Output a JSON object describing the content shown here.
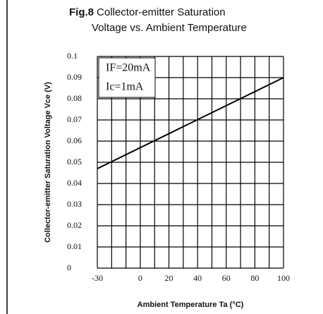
{
  "chart_data": {
    "type": "line",
    "figure": "Fig.8",
    "title": [
      "Collector-emitter Saturation",
      "Voltage vs. Ambient Temperature"
    ],
    "xlabel": "Ambient Temperature Ta (°C)",
    "ylabel": "Collector-emitter Saturation Voltage Vce (V)",
    "annotations": [
      "IF=20mA",
      "Ic=1mA"
    ],
    "x": [
      -30,
      100
    ],
    "series": [
      {
        "color": "#000000",
        "values": [
          0.047,
          0.09
        ]
      }
    ],
    "xlim": [
      -30,
      100
    ],
    "xticks": [
      -30,
      0,
      20,
      40,
      60,
      80,
      100
    ],
    "xminor": [
      -20,
      -10,
      10,
      30,
      50,
      70,
      90
    ],
    "ylim": [
      0,
      0.1
    ],
    "yticks": [
      0,
      0.01,
      0.02,
      0.03,
      0.04,
      0.05,
      0.06,
      0.07,
      0.08,
      0.09,
      0.1
    ],
    "grid": true
  }
}
